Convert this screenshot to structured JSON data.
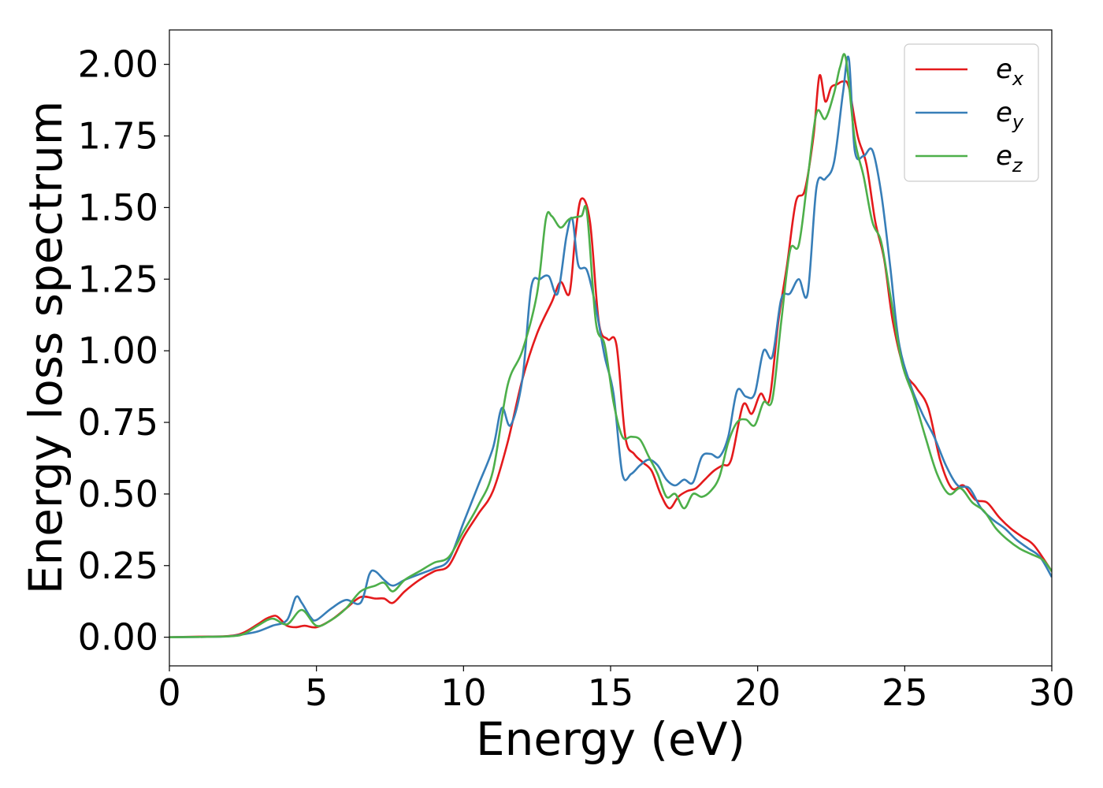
{
  "chart_data": {
    "type": "line",
    "title": "",
    "xlabel": "Energy (eV)",
    "ylabel": "Energy loss spectrum",
    "xlim": [
      0,
      30
    ],
    "ylim": [
      -0.1,
      2.12
    ],
    "xticks": [
      0,
      5,
      10,
      15,
      20,
      25,
      30
    ],
    "xtick_labels": [
      "0",
      "5",
      "10",
      "15",
      "20",
      "25",
      "30"
    ],
    "yticks": [
      0.0,
      0.25,
      0.5,
      0.75,
      1.0,
      1.25,
      1.5,
      1.75,
      2.0
    ],
    "ytick_labels": [
      "0.00",
      "0.25",
      "0.50",
      "0.75",
      "1.00",
      "1.25",
      "1.50",
      "1.75",
      "2.00"
    ],
    "grid": false,
    "legend_position": "top-right",
    "series": [
      {
        "name": "e_x",
        "label_base": "e",
        "label_sub": "x",
        "color": "#e41a1c",
        "x": [
          0,
          1,
          2,
          2.5,
          3,
          3.3,
          3.6,
          3.8,
          4.0,
          4.3,
          4.6,
          5.0,
          5.5,
          6.0,
          6.5,
          7.0,
          7.3,
          7.6,
          8.0,
          8.5,
          9.0,
          9.5,
          10.0,
          10.5,
          11.0,
          11.5,
          12.0,
          12.5,
          13.0,
          13.3,
          13.6,
          13.8,
          14.0,
          14.3,
          14.6,
          14.9,
          15.2,
          15.5,
          15.8,
          16.1,
          16.4,
          16.7,
          17.0,
          17.3,
          17.6,
          17.9,
          18.2,
          18.5,
          18.8,
          19.1,
          19.5,
          19.8,
          20.1,
          20.4,
          20.7,
          21.0,
          21.3,
          21.6,
          21.9,
          22.1,
          22.3,
          22.5,
          22.7,
          22.9,
          23.1,
          23.4,
          23.7,
          24.0,
          24.3,
          24.6,
          25.0,
          25.4,
          25.8,
          26.2,
          26.6,
          27.0,
          27.4,
          27.8,
          28.2,
          28.6,
          29.0,
          29.4,
          30.0
        ],
        "y": [
          0,
          0.002,
          0.004,
          0.015,
          0.045,
          0.065,
          0.075,
          0.06,
          0.04,
          0.035,
          0.04,
          0.035,
          0.06,
          0.1,
          0.14,
          0.135,
          0.135,
          0.12,
          0.16,
          0.2,
          0.23,
          0.25,
          0.35,
          0.43,
          0.51,
          0.68,
          0.9,
          1.06,
          1.17,
          1.24,
          1.2,
          1.4,
          1.53,
          1.45,
          1.1,
          1.04,
          1.02,
          0.7,
          0.64,
          0.61,
          0.58,
          0.5,
          0.45,
          0.49,
          0.51,
          0.52,
          0.55,
          0.58,
          0.6,
          0.62,
          0.81,
          0.78,
          0.85,
          0.83,
          1.1,
          1.3,
          1.52,
          1.56,
          1.75,
          1.96,
          1.87,
          1.92,
          1.93,
          1.94,
          1.92,
          1.75,
          1.65,
          1.45,
          1.32,
          1.1,
          0.93,
          0.87,
          0.8,
          0.62,
          0.52,
          0.53,
          0.48,
          0.47,
          0.42,
          0.38,
          0.35,
          0.32,
          0.23
        ]
      },
      {
        "name": "e_y",
        "label_base": "e",
        "label_sub": "y",
        "color": "#377eb8",
        "x": [
          0,
          1,
          2,
          2.5,
          3,
          3.5,
          4.0,
          4.3,
          4.5,
          4.8,
          5.0,
          5.5,
          6.0,
          6.5,
          6.8,
          7.0,
          7.3,
          7.6,
          8.0,
          8.5,
          9.0,
          9.5,
          10.0,
          10.5,
          11.0,
          11.3,
          11.6,
          12.0,
          12.3,
          12.6,
          12.9,
          13.2,
          13.5,
          13.7,
          13.9,
          14.2,
          14.5,
          14.8,
          15.1,
          15.4,
          15.7,
          16.0,
          16.3,
          16.6,
          16.9,
          17.2,
          17.5,
          17.8,
          18.1,
          18.4,
          18.7,
          19.0,
          19.3,
          19.6,
          19.9,
          20.2,
          20.5,
          20.8,
          21.1,
          21.4,
          21.7,
          22.0,
          22.3,
          22.6,
          22.9,
          23.1,
          23.3,
          23.6,
          23.9,
          24.2,
          24.5,
          24.8,
          25.2,
          25.6,
          26.0,
          26.4,
          26.8,
          27.2,
          27.6,
          28.0,
          28.4,
          28.8,
          29.2,
          29.6,
          30.0
        ],
        "y": [
          0,
          0.001,
          0.003,
          0.01,
          0.02,
          0.04,
          0.06,
          0.14,
          0.12,
          0.07,
          0.06,
          0.1,
          0.13,
          0.12,
          0.22,
          0.23,
          0.2,
          0.18,
          0.2,
          0.22,
          0.24,
          0.27,
          0.4,
          0.53,
          0.66,
          0.8,
          0.74,
          0.9,
          1.22,
          1.25,
          1.26,
          1.2,
          1.4,
          1.46,
          1.3,
          1.28,
          1.15,
          0.98,
          0.85,
          0.57,
          0.57,
          0.6,
          0.62,
          0.6,
          0.55,
          0.53,
          0.55,
          0.54,
          0.63,
          0.64,
          0.63,
          0.7,
          0.86,
          0.84,
          0.85,
          1.0,
          0.98,
          1.18,
          1.2,
          1.25,
          1.2,
          1.57,
          1.6,
          1.66,
          1.9,
          2.02,
          1.7,
          1.68,
          1.7,
          1.55,
          1.3,
          1.03,
          0.88,
          0.78,
          0.7,
          0.6,
          0.53,
          0.52,
          0.45,
          0.41,
          0.38,
          0.34,
          0.31,
          0.28,
          0.21
        ]
      },
      {
        "name": "e_z",
        "label_base": "e",
        "label_sub": "z",
        "color": "#4daf4a",
        "x": [
          0,
          1,
          2,
          2.5,
          3,
          3.5,
          4.0,
          4.5,
          5.0,
          5.5,
          6.0,
          6.5,
          7.0,
          7.3,
          7.6,
          8.0,
          8.5,
          9.0,
          9.5,
          10.0,
          10.5,
          11.0,
          11.5,
          12.0,
          12.5,
          12.8,
          13.0,
          13.3,
          13.6,
          14.0,
          14.2,
          14.5,
          14.8,
          15.1,
          15.4,
          15.7,
          16.0,
          16.3,
          16.6,
          16.9,
          17.2,
          17.5,
          17.8,
          18.1,
          18.4,
          18.7,
          19.0,
          19.3,
          19.6,
          19.9,
          20.2,
          20.5,
          20.8,
          21.1,
          21.4,
          21.7,
          22.0,
          22.3,
          22.6,
          22.8,
          23.0,
          23.3,
          23.6,
          23.9,
          24.2,
          24.5,
          24.9,
          25.3,
          25.7,
          26.1,
          26.5,
          26.9,
          27.3,
          27.7,
          28.1,
          28.5,
          28.9,
          29.3,
          29.7,
          30.0
        ],
        "y": [
          0,
          0.001,
          0.003,
          0.01,
          0.04,
          0.065,
          0.045,
          0.095,
          0.04,
          0.06,
          0.1,
          0.16,
          0.18,
          0.19,
          0.16,
          0.2,
          0.23,
          0.26,
          0.28,
          0.37,
          0.46,
          0.58,
          0.88,
          1.0,
          1.2,
          1.46,
          1.47,
          1.43,
          1.46,
          1.47,
          1.48,
          1.1,
          1.02,
          0.82,
          0.7,
          0.7,
          0.69,
          0.63,
          0.57,
          0.49,
          0.5,
          0.45,
          0.5,
          0.49,
          0.51,
          0.56,
          0.68,
          0.75,
          0.76,
          0.74,
          0.82,
          0.83,
          1.1,
          1.35,
          1.37,
          1.6,
          1.83,
          1.81,
          1.9,
          1.99,
          2.02,
          1.74,
          1.61,
          1.45,
          1.38,
          1.2,
          0.96,
          0.84,
          0.7,
          0.57,
          0.5,
          0.52,
          0.47,
          0.44,
          0.38,
          0.34,
          0.31,
          0.29,
          0.27,
          0.23
        ]
      }
    ]
  }
}
